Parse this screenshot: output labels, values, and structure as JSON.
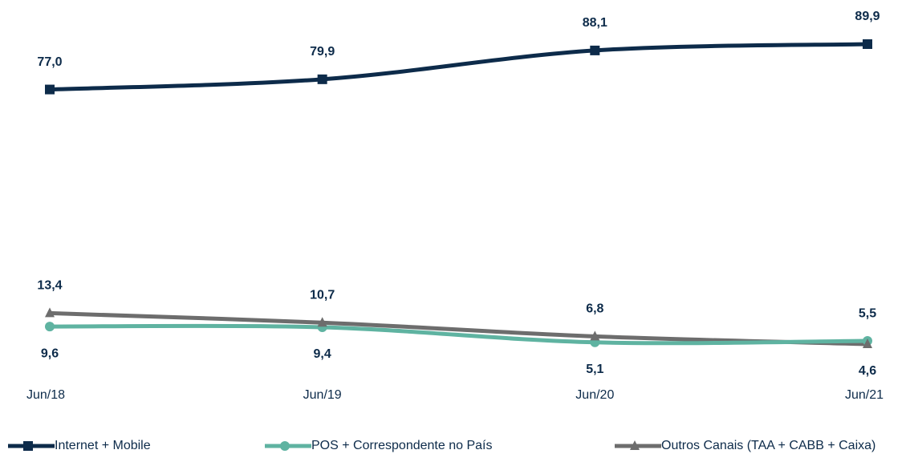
{
  "chart_data": {
    "type": "line",
    "categories": [
      "Jun/18",
      "Jun/19",
      "Jun/20",
      "Jun/21"
    ],
    "series": [
      {
        "name": "Internet + Mobile",
        "color": "#0d2b4a",
        "marker": "square",
        "values": [
          77.0,
          79.9,
          88.1,
          89.9
        ],
        "value_labels": [
          "77,0",
          "79,9",
          "88,1",
          "89,9"
        ]
      },
      {
        "name": "POS + Correspondente no País",
        "color": "#5fb3a1",
        "marker": "circle",
        "values": [
          9.6,
          9.4,
          5.1,
          5.5
        ],
        "value_labels": [
          "9,6",
          "9,4",
          "5,1",
          "5,5"
        ]
      },
      {
        "name": "Outros Canais (TAA + CABB + Caixa)",
        "color": "#6d6d6d",
        "marker": "triangle",
        "values": [
          13.4,
          10.7,
          6.8,
          4.6
        ],
        "value_labels": [
          "13,4",
          "10,7",
          "6,8",
          "4,6"
        ]
      }
    ],
    "legend": "bottom"
  }
}
